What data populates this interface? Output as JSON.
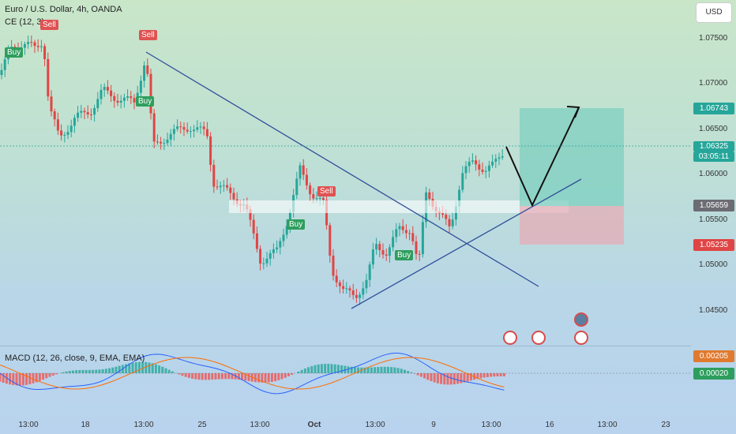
{
  "header": {
    "title": "Euro / U.S. Dollar, 4h, OANDA",
    "indicator_label": "CE (12, 3)",
    "currency_button": "USD"
  },
  "price_axis": {
    "ticks": [
      "1.07500",
      "1.07000",
      "1.06500",
      "1.06000",
      "1.05500",
      "1.05000",
      "1.04500"
    ],
    "labels": {
      "target": "1.06743",
      "current": "1.06325",
      "countdown": "03:05:11",
      "entry": "1.05659",
      "stop": "1.05235"
    }
  },
  "signals": [
    {
      "type": "Sell",
      "text": "Sell"
    },
    {
      "type": "Buy",
      "text": "Buy"
    },
    {
      "type": "Sell",
      "text": "Sell"
    },
    {
      "type": "Buy",
      "text": "Buy"
    },
    {
      "type": "Sell",
      "text": "Sell"
    },
    {
      "type": "Buy",
      "text": "Buy"
    },
    {
      "type": "Buy",
      "text": "Buy"
    }
  ],
  "macd": {
    "label": "MACD (12, 26, close, 9, EMA, EMA)",
    "value_top": "0.00205",
    "value_bottom": "0.00020"
  },
  "time_axis": [
    "13:00",
    "18",
    "13:00",
    "25",
    "13:00",
    "Oct",
    "13:00",
    "9",
    "13:00",
    "16",
    "13:00",
    "23"
  ],
  "colors": {
    "bull": "#26a69a",
    "bear": "#e04545",
    "trendline": "#2f4f9a",
    "target_zone": "#6fc7b6",
    "stop_zone": "#e5a3ad",
    "macd_line": "#2962ff",
    "signal_line": "#ff6d00"
  }
}
